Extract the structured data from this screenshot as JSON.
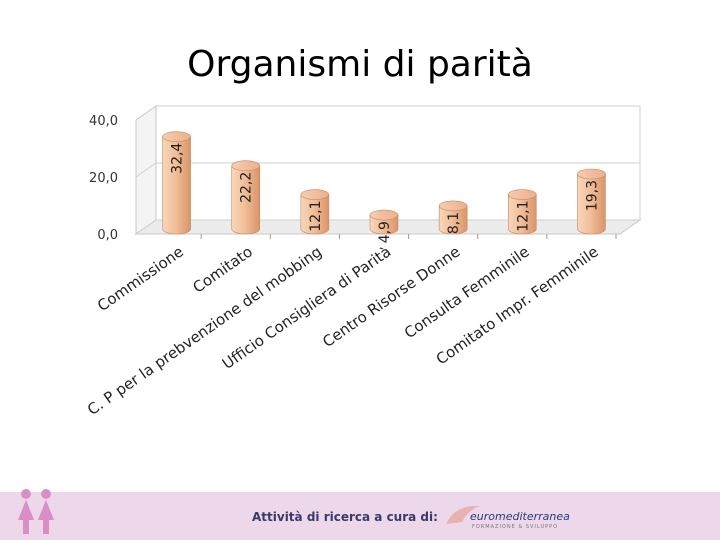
{
  "title": "Organismi di parità",
  "chart_data": {
    "type": "bar",
    "categories": [
      "Commissione",
      "Comitato",
      "C. P per la prebvenzione del mobbing",
      "Ufficio Consigliera di Parità",
      "Centro Risorse Donne",
      "Consulta Femminile",
      "Comitato Impr. Femminile"
    ],
    "values": [
      32.4,
      22.2,
      12.1,
      4.9,
      8.1,
      12.1,
      19.3
    ],
    "value_labels": [
      "32,4",
      "22,2",
      "12,1",
      "4,9",
      "8,1",
      "12,1",
      "19,3"
    ],
    "ylim": [
      0,
      40
    ],
    "yticks": [
      0,
      20,
      40
    ],
    "ytick_labels": [
      "0,0",
      "20,0",
      "40,0"
    ],
    "grid": true,
    "bar_color": "#f2c09a",
    "title": "",
    "xlabel": "",
    "ylabel": ""
  },
  "footer": {
    "text": "Attività di ricerca a cura di:",
    "logo_name": "euromediterranea",
    "logo_sub": "FORMAZIONE & SVILUPPO",
    "icon": "women-icon",
    "band_color": "#ecd8ea"
  }
}
